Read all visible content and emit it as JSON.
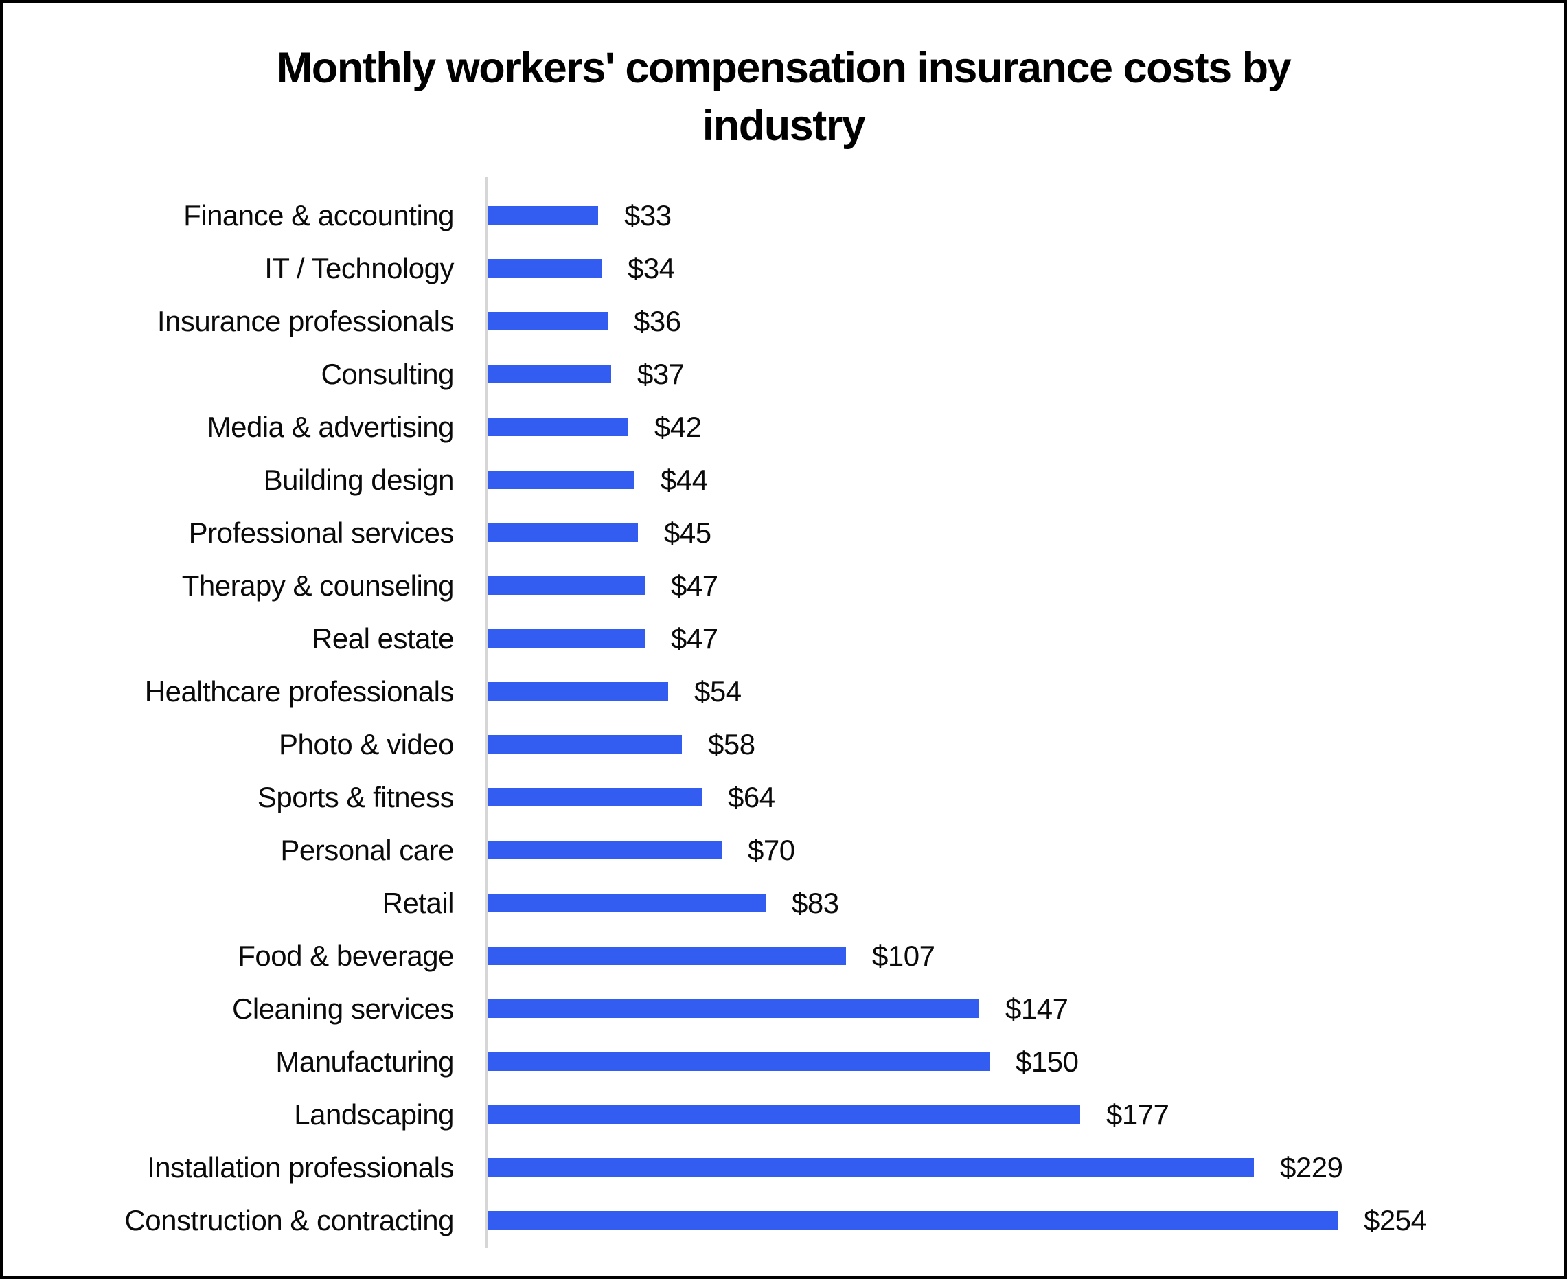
{
  "page": {
    "background": "#ffffff",
    "frame_border_color": "#000000"
  },
  "chart_data": {
    "type": "bar",
    "orientation": "horizontal",
    "title": "Monthly workers' compensation insurance costs by industry",
    "title_lines": [
      "Monthly workers' compensation insurance costs by",
      "industry"
    ],
    "xlabel": "",
    "ylabel": "",
    "grid": false,
    "legend": false,
    "x_axis_ticks_visible": false,
    "value_label_prefix": "$",
    "bar_color": "#335cf0",
    "axis_line_color": "#d6d6d6",
    "text_color": "#000000",
    "xlim": [
      0,
      280
    ],
    "categories": [
      "Finance & accounting",
      "IT / Technology",
      "Insurance professionals",
      "Consulting",
      "Media & advertising",
      "Building design",
      "Professional services",
      "Therapy & counseling",
      "Real estate",
      "Healthcare professionals",
      "Photo & video",
      "Sports & fitness",
      "Personal care",
      "Retail",
      "Food & beverage",
      "Cleaning services",
      "Manufacturing",
      "Landscaping",
      "Installation professionals",
      "Construction & contracting"
    ],
    "values": [
      33,
      34,
      36,
      37,
      42,
      44,
      45,
      47,
      47,
      54,
      58,
      64,
      70,
      83,
      107,
      147,
      150,
      177,
      229,
      254
    ],
    "value_labels": [
      "$33",
      "$34",
      "$36",
      "$37",
      "$42",
      "$44",
      "$45",
      "$47",
      "$47",
      "$54",
      "$58",
      "$64",
      "$70",
      "$83",
      "$107",
      "$147",
      "$150",
      "$177",
      "$229",
      "$254"
    ]
  }
}
